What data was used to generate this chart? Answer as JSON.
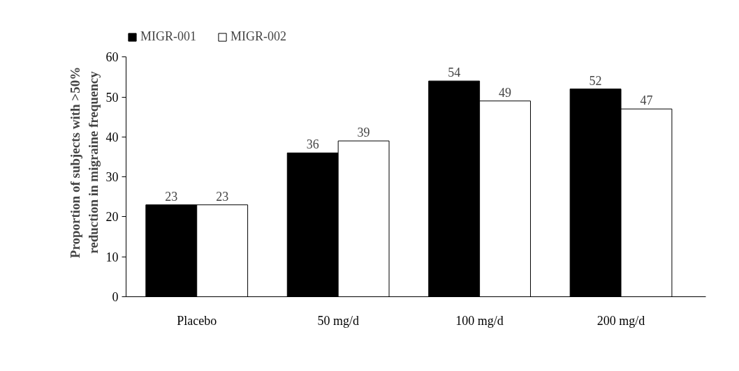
{
  "chart_data": {
    "type": "bar",
    "ylabel": "Proportion of subjects with >50%\nreduction in migraine frequency",
    "categories": [
      "Placebo",
      "50 mg/d",
      "100 mg/d",
      "200 mg/d"
    ],
    "series": [
      {
        "name": "MIGR-001",
        "color": "#000000",
        "values": [
          23,
          36,
          54,
          52
        ]
      },
      {
        "name": "MIGR-002",
        "color": "#ffffff",
        "values": [
          23,
          39,
          49,
          47
        ]
      }
    ],
    "ylim": [
      0,
      60
    ],
    "yticks": [
      0,
      10,
      20,
      30,
      40,
      50,
      60
    ],
    "data_labels": true,
    "grid": false,
    "legend": "top left"
  }
}
